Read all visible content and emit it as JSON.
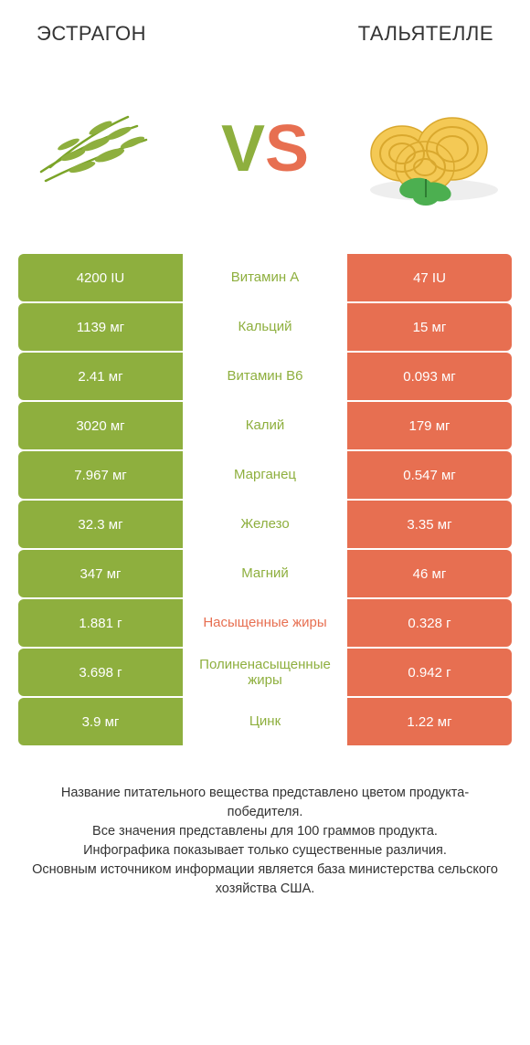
{
  "header": {
    "left": "ЭСТРАГОН",
    "right": "ТАЛЬЯТЕЛЛЕ"
  },
  "vs": {
    "v": "V",
    "s": "S"
  },
  "colors": {
    "left_bg": "#8eaf3e",
    "right_bg": "#e76f51",
    "left_text": "#8eaf3e",
    "right_text": "#e76f51",
    "vs_v": "#8eaf3e",
    "vs_s": "#e76f51"
  },
  "rows": [
    {
      "left": "4200 IU",
      "mid": "Витамин A",
      "right": "47 IU",
      "winner": "left"
    },
    {
      "left": "1139 мг",
      "mid": "Кальций",
      "right": "15 мг",
      "winner": "left"
    },
    {
      "left": "2.41 мг",
      "mid": "Витамин B6",
      "right": "0.093 мг",
      "winner": "left"
    },
    {
      "left": "3020 мг",
      "mid": "Калий",
      "right": "179 мг",
      "winner": "left"
    },
    {
      "left": "7.967 мг",
      "mid": "Марганец",
      "right": "0.547 мг",
      "winner": "left"
    },
    {
      "left": "32.3 мг",
      "mid": "Железо",
      "right": "3.35 мг",
      "winner": "left"
    },
    {
      "left": "347 мг",
      "mid": "Магний",
      "right": "46 мг",
      "winner": "left"
    },
    {
      "left": "1.881 г",
      "mid": "Насыщенные жиры",
      "right": "0.328 г",
      "winner": "right"
    },
    {
      "left": "3.698 г",
      "mid": "Полиненасыщенные жиры",
      "right": "0.942 г",
      "winner": "left"
    },
    {
      "left": "3.9 мг",
      "mid": "Цинк",
      "right": "1.22 мг",
      "winner": "left"
    }
  ],
  "footer": {
    "l1": "Название питательного вещества представлено цветом продукта-победителя.",
    "l2": "Все значения представлены для 100 граммов продукта.",
    "l3": "Инфографика показывает только существенные различия.",
    "l4": "Основным источником информации является база министерства сельского хозяйства США."
  }
}
